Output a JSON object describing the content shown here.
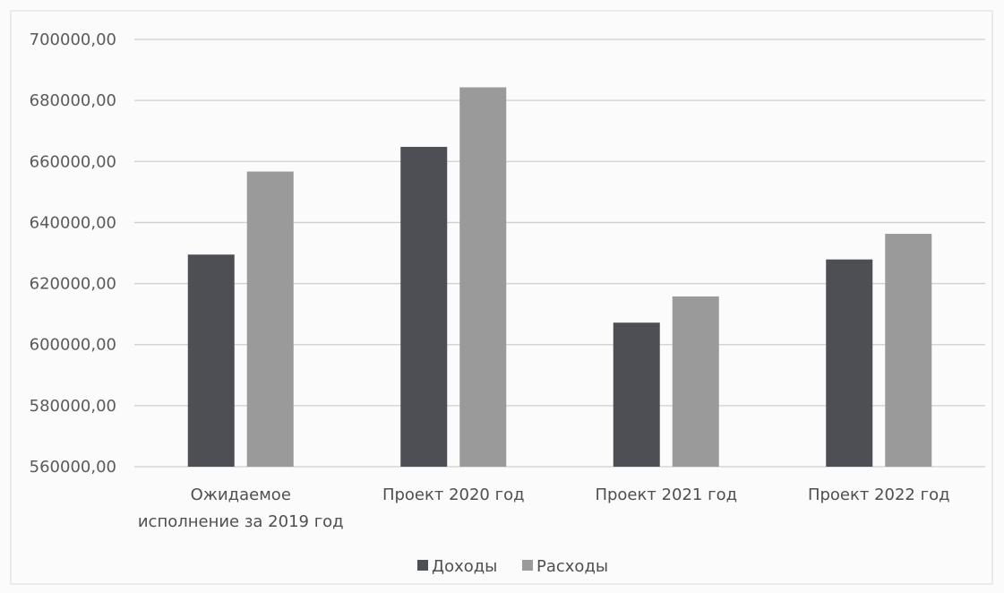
{
  "chart_data": {
    "type": "bar",
    "categories": [
      [
        "Ожидаемое",
        "исполнение за 2019 год"
      ],
      [
        "Проект 2020 год"
      ],
      [
        "Проект 2021 год"
      ],
      [
        "Проект 2022 год"
      ]
    ],
    "series": [
      {
        "name": "Доходы",
        "color": "#4d4f55",
        "values": [
          629500,
          664800,
          607200,
          627900
        ]
      },
      {
        "name": "Расходы",
        "color": "#9a9a9a",
        "values": [
          656700,
          684300,
          615800,
          636300
        ]
      }
    ],
    "ylim": [
      560000,
      700000
    ],
    "yticks": [
      560000,
      580000,
      600000,
      620000,
      640000,
      660000,
      680000,
      700000
    ],
    "ytick_labels": [
      "560000,00",
      "580000,00",
      "600000,00",
      "620000,00",
      "640000,00",
      "660000,00",
      "680000,00",
      "700000,00"
    ],
    "grid": true,
    "legend_position": "bottom",
    "title": "",
    "xlabel": "",
    "ylabel": ""
  }
}
